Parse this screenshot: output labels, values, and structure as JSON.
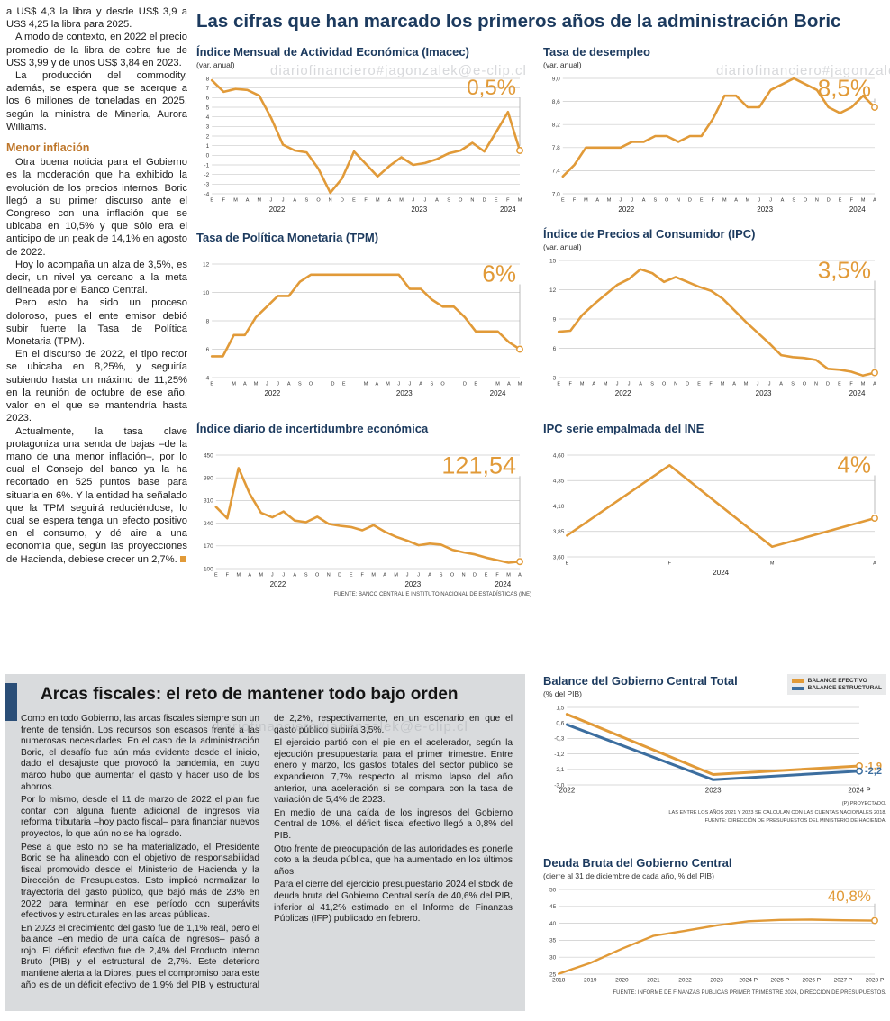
{
  "watermark": "diariofinanciero#jagonzalek@e-clip.cl",
  "headline": "Las cifras que han marcado los primeros años de la administración Boric",
  "left_column": {
    "paragraphs_top": [
      "a US$ 4,3 la libra y desde US$ 3,9 a US$ 4,25 la libra para 2025.",
      "A modo de contexto, en 2022 el precio promedio de la libra de cobre fue de US$ 3,99 y de unos US$ 3,84 en 2023.",
      "La producción del commodity, además, se espera que se acerque a los 6 millones de toneladas en 2025, según la ministra de Minería, Aurora Williams."
    ],
    "subhead": "Menor inflación",
    "paragraphs_bottom": [
      "Otra buena noticia para el Gobierno es la moderación que ha exhibido la evolución de los precios internos. Boric llegó a su primer discurso ante el Congreso con una inflación que se ubicaba en 10,5% y que sólo era el anticipo de un peak de 14,1% en agosto de 2022.",
      "Hoy lo acompaña un alza de 3,5%, es decir, un nivel ya cercano a la meta delineada por el Banco Central.",
      "Pero esto ha sido un proceso doloroso, pues el ente emisor debió subir fuerte la Tasa de Política Monetaria (TPM).",
      "En el discurso de 2022, el tipo rector se ubicaba en 8,25%, y seguiría subiendo hasta un máximo de 11,25% en la reunión de octubre de ese año, valor en el que se mantendría hasta 2023.",
      "Actualmente, la tasa clave protagoniza una senda de bajas –de la mano de una menor inflación–, por lo cual el Consejo del banco ya la ha recortado en 525 puntos base para situarla en 6%. Y la entidad ha señalado que la TPM seguirá reduciéndose, lo cual se espera tenga un efecto positivo en el consumo, y dé aire a una economía que, según las proyecciones de Hacienda, debiese crecer un 2,7%."
    ]
  },
  "fiscal_section": {
    "title": "Arcas fiscales: el reto de mantener todo bajo orden",
    "paragraphs": [
      "Como en todo Gobierno, las arcas fiscales siempre son un frente de tensión. Los recursos son escasos frente a las numerosas necesidades. En el caso de la administración Boric, el desafío fue aún más evidente desde el inicio, dado el desajuste que provocó la pandemia, en cuyo marco hubo que aumentar el gasto y hacer uso de los ahorros.",
      "Por lo mismo, desde el 11 de marzo de 2022 el plan fue contar con alguna fuente adicional de ingresos vía reforma tributaria –hoy pacto fiscal– para financiar nuevos proyectos, lo que aún no se ha logrado.",
      "Pese a que esto no se ha materializado, el Presidente Boric se ha alineado con el objetivo de responsabilidad fiscal promovido desde el Ministerio de Hacienda y la Dirección de Presupuestos. Esto implicó normalizar la trayectoria del gasto público, que bajó más de 23% en 2022 para terminar en ese período con superávits efectivos y estructurales en las arcas públicas.",
      "En 2023 el crecimiento del gasto fue de 1,1% real, pero el balance –en medio de una caída de ingresos– pasó a rojo. El déficit efectivo fue de 2,4% del Producto Interno Bruto (PIB) y el estructural de 2,7%. Este deterioro mantiene alerta a la Dipres, pues el compromiso para este año es de un déficit efectivo de 1,9% del PIB y estructural de 2,2%, respectivamente, en un escenario en que el gasto público subiría 3,5%.",
      "El ejercicio partió con el pie en el acelerador, según la ejecución presupuestaria para el primer trimestre. Entre enero y marzo, los gastos totales del sector público se expandieron 7,7% respecto al mismo lapso del año anterior, una aceleración si se compara con la tasa de variación de 5,4% de 2023.",
      "En medio de una caída de los ingresos del Gobierno Central de 10%, el déficit fiscal efectivo llegó a 0,8% del PIB.",
      "Otro frente de preocupación de las autoridades es ponerle coto a la deuda pública, que ha aumentado en los últimos años.",
      "Para el cierre del ejercicio presupuestario 2024 el stock de deuda bruta del Gobierno Central sería de 40,6% del PIB, inferior al 41,2% estimado en el Informe de Finanzas Públicas (IFP) publicado en febrero."
    ]
  },
  "chart_data": [
    {
      "key": "imacec",
      "type": "line",
      "title": "Índice Mensual de Actividad Económica (Imacec)",
      "subtitle": "(var. anual)",
      "big_value": "0,5%",
      "big_size": 24,
      "yticks": [
        "8",
        "7",
        "6",
        "5",
        "4",
        "3",
        "2",
        "1",
        "0",
        "-1",
        "-2",
        "-3",
        "-4"
      ],
      "ylim": [
        -4,
        8
      ],
      "x": [
        "E",
        "F",
        "M",
        "A",
        "M",
        "J",
        "J",
        "A",
        "S",
        "O",
        "N",
        "D",
        "E",
        "F",
        "M",
        "A",
        "M",
        "J",
        "J",
        "A",
        "S",
        "O",
        "N",
        "D",
        "E",
        "F",
        "M"
      ],
      "years": [
        {
          "label": "2022",
          "i": 5.5
        },
        {
          "label": "2023",
          "i": 17.5
        },
        {
          "label": "2024",
          "i": 25
        }
      ],
      "series": [
        {
          "name": "",
          "color": "#E19A38",
          "values": [
            7.8,
            6.6,
            6.9,
            6.8,
            6.2,
            3.9,
            1.1,
            0.5,
            0.3,
            -1.4,
            -3.9,
            -2.4,
            0.4,
            -0.9,
            -2.2,
            -1.1,
            -0.2,
            -1.0,
            -0.8,
            -0.4,
            0.2,
            0.5,
            1.3,
            0.4,
            2.4,
            4.5,
            0.5
          ]
        }
      ]
    },
    {
      "key": "desempleo",
      "type": "line",
      "title": "Tasa de desempleo",
      "subtitle": "(var. anual)",
      "big_value": "8,5%",
      "big_size": 26,
      "yticks": [
        "9,0",
        "8,6",
        "8,2",
        "7,8",
        "7,4",
        "7,0"
      ],
      "ylim": [
        7.0,
        9.0
      ],
      "x": [
        "E",
        "F",
        "M",
        "A",
        "M",
        "J",
        "J",
        "A",
        "S",
        "O",
        "N",
        "D",
        "E",
        "F",
        "M",
        "A",
        "M",
        "J",
        "J",
        "A",
        "S",
        "O",
        "N",
        "D",
        "E",
        "F",
        "M",
        "A"
      ],
      "years": [
        {
          "label": "2022",
          "i": 5.5
        },
        {
          "label": "2023",
          "i": 17.5
        },
        {
          "label": "2024",
          "i": 25.5
        }
      ],
      "series": [
        {
          "name": "",
          "color": "#E19A38",
          "values": [
            7.3,
            7.5,
            7.8,
            7.8,
            7.8,
            7.8,
            7.9,
            7.9,
            8.0,
            8.0,
            7.9,
            8.0,
            8.0,
            8.3,
            8.7,
            8.7,
            8.5,
            8.5,
            8.8,
            8.9,
            9.0,
            8.9,
            8.8,
            8.5,
            8.4,
            8.5,
            8.7,
            8.5
          ]
        }
      ]
    },
    {
      "key": "tpm",
      "type": "line",
      "title": "Tasa de Política Monetaria (TPM)",
      "subtitle": "",
      "big_value": "6%",
      "big_size": 26,
      "yticks": [
        "12",
        "10",
        "8",
        "6",
        "4"
      ],
      "ylim": [
        4,
        12
      ],
      "x": [
        "E",
        "",
        "M",
        "A",
        "M",
        "J",
        "J",
        "A",
        "S",
        "O",
        "",
        "D",
        "E",
        "",
        "M",
        "A",
        "M",
        "J",
        "J",
        "A",
        "S",
        "O",
        "",
        "D",
        "E",
        "",
        "M",
        "A",
        "M"
      ],
      "years": [
        {
          "label": "2022",
          "i": 5.5
        },
        {
          "label": "2023",
          "i": 17.5
        },
        {
          "label": "2024",
          "i": 26
        }
      ],
      "series": [
        {
          "name": "",
          "color": "#E19A38",
          "values": [
            5.5,
            5.5,
            7.0,
            7.0,
            8.25,
            9.0,
            9.75,
            9.75,
            10.75,
            11.25,
            11.25,
            11.25,
            11.25,
            11.25,
            11.25,
            11.25,
            11.25,
            11.25,
            10.25,
            10.25,
            9.5,
            9.0,
            9.0,
            8.25,
            7.25,
            7.25,
            7.25,
            6.5,
            6.0
          ]
        }
      ]
    },
    {
      "key": "ipc",
      "type": "line",
      "title": "Índice de Precios al Consumidor (IPC)",
      "subtitle": "(var. anual)",
      "big_value": "3,5%",
      "big_size": 26,
      "yticks": [
        "15",
        "12",
        "9",
        "6",
        "3"
      ],
      "ylim": [
        3,
        15
      ],
      "x": [
        "E",
        "F",
        "M",
        "A",
        "M",
        "J",
        "J",
        "A",
        "S",
        "O",
        "N",
        "D",
        "E",
        "F",
        "M",
        "A",
        "M",
        "J",
        "J",
        "A",
        "S",
        "O",
        "N",
        "D",
        "E",
        "F",
        "M",
        "A"
      ],
      "years": [
        {
          "label": "2022",
          "i": 5.5
        },
        {
          "label": "2023",
          "i": 17.5
        },
        {
          "label": "2024",
          "i": 25.5
        }
      ],
      "series": [
        {
          "name": "",
          "color": "#E19A38",
          "values": [
            7.7,
            7.8,
            9.4,
            10.5,
            11.5,
            12.5,
            13.1,
            14.1,
            13.7,
            12.8,
            13.3,
            12.8,
            12.3,
            11.9,
            11.1,
            9.9,
            8.7,
            7.6,
            6.5,
            5.3,
            5.1,
            5.0,
            4.8,
            3.9,
            3.8,
            3.6,
            3.2,
            3.5
          ]
        }
      ]
    },
    {
      "key": "incertidumbre",
      "type": "line",
      "title": "Índice diario de incertidumbre económica",
      "subtitle": "",
      "big_value": "121,54",
      "big_size": 27,
      "source": "FUENTE: BANCO CENTRAL E INSTITUTO NACIONAL DE ESTADÍSTICAS (INE)",
      "yticks": [
        "450",
        "380",
        "310",
        "240",
        "170",
        "100"
      ],
      "ylim": [
        100,
        450
      ],
      "x": [
        "E",
        "F",
        "M",
        "A",
        "M",
        "J",
        "J",
        "A",
        "S",
        "O",
        "N",
        "D",
        "E",
        "F",
        "M",
        "A",
        "M",
        "J",
        "J",
        "A",
        "S",
        "O",
        "N",
        "D",
        "E",
        "F",
        "M",
        "A"
      ],
      "years": [
        {
          "label": "2022",
          "i": 5.5
        },
        {
          "label": "2023",
          "i": 17.5
        },
        {
          "label": "2024",
          "i": 25.5
        }
      ],
      "series": [
        {
          "name": "",
          "color": "#E19A38",
          "values": [
            290,
            255,
            410,
            330,
            272,
            258,
            276,
            248,
            243,
            260,
            238,
            232,
            228,
            218,
            234,
            214,
            198,
            186,
            172,
            177,
            174,
            158,
            150,
            144,
            134,
            126,
            118,
            121.54
          ]
        }
      ]
    },
    {
      "key": "ipc_empalmada",
      "type": "line",
      "title": "IPC serie empalmada del INE",
      "subtitle": "",
      "big_value": "4%",
      "big_size": 26,
      "yticks": [
        "4,60",
        "4,35",
        "4,10",
        "3,85",
        "3,60"
      ],
      "ylim": [
        3.6,
        4.6
      ],
      "x": [
        "E",
        "F",
        "M",
        "A"
      ],
      "years": [
        {
          "label": "2024",
          "i": 1.5
        }
      ],
      "series": [
        {
          "name": "",
          "color": "#E19A38",
          "values": [
            3.81,
            4.5,
            3.7,
            3.98
          ]
        }
      ]
    },
    {
      "key": "balance_gobierno",
      "type": "line",
      "title": "Balance del Gobierno Central Total",
      "subtitle": "(% del PIB)",
      "xfont": 8,
      "lw": 3,
      "yticks": [
        "1,5",
        "0,6",
        "-0,3",
        "-1,2",
        "-2,1",
        "-3,0"
      ],
      "ylim": [
        -3.0,
        1.5
      ],
      "x": [
        "2022",
        "2023",
        "2024 P"
      ],
      "footnotes": [
        "(P) PROYECTADO.",
        "LAS ENTRE LOS AÑOS 2021 Y 2023 SE CALCULAN  CON LAS CUENTAS NACIONALES 2018.",
        "FUENTE: DIRECCIÓN DE PRESUPUESTOS DEL MINISTERIO DE HACIENDA."
      ],
      "series": [
        {
          "name": "BALANCE EFECTIVO",
          "color": "#E19A38",
          "values": [
            1.1,
            -2.4,
            -1.9
          ],
          "end_label": "-1,9"
        },
        {
          "name": "BALANCE ESTRUCTURAL",
          "color": "#3C6E9F",
          "values": [
            0.5,
            -2.7,
            -2.2
          ],
          "end_label": "-2,2"
        }
      ]
    },
    {
      "key": "deuda_bruta",
      "type": "line",
      "title": "Deuda Bruta del Gobierno Central",
      "subtitle": "(cierre al 31 de diciembre de cada año, % del PIB)",
      "big_value": "40,8%",
      "big_size": 17,
      "xfont": 6.5,
      "lw": 2.4,
      "source": "FUENTE: INFORME DE FINANZAS PÚBLICAS PRIMER TRIMESTRE 2024, DIRECCIÓN DE PRESUPUESTOS.",
      "yticks": [
        "50",
        "45",
        "40",
        "35",
        "30",
        "25"
      ],
      "ylim": [
        25,
        50
      ],
      "x": [
        "2018",
        "2019",
        "2020",
        "2021",
        "2022",
        "2023",
        "2024 P",
        "2025 P",
        "2026 P",
        "2027 P",
        "2028 P"
      ],
      "series": [
        {
          "name": "",
          "color": "#E19A38",
          "values": [
            25.1,
            28.3,
            32.5,
            36.3,
            37.8,
            39.4,
            40.6,
            41.0,
            41.1,
            40.9,
            40.8
          ]
        }
      ]
    }
  ]
}
